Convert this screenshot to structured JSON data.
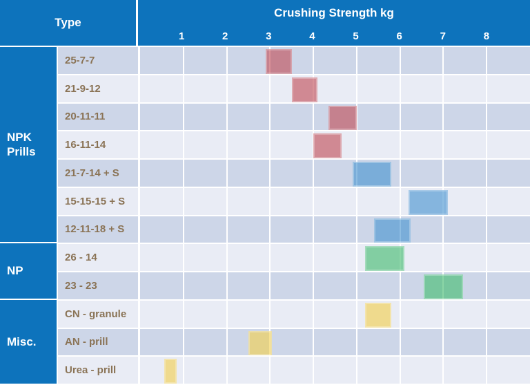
{
  "header": {
    "type_label": "Type",
    "axis_title": "Crushing Strength kg"
  },
  "colors": {
    "header_blue": "#0d73bc",
    "row_dark": "#cdd6e8",
    "row_light": "#e9ecf5",
    "row_label_text": "#8a7355",
    "gridline": "#ffffff",
    "bar_red": "#c04752",
    "bar_blue": "#4291cf",
    "bar_green": "#3eba6b",
    "bar_yellow": "#f4cf48",
    "bar_alpha": 0.6
  },
  "chart_data": {
    "type": "bar",
    "subtype": "horizontal-range-bars",
    "title": "Crushing Strength kg",
    "xlabel": "Crushing Strength kg",
    "ylabel": "Type",
    "xlim": [
      0,
      9
    ],
    "x_ticks": [
      "1",
      "2",
      "3",
      "4",
      "5",
      "6",
      "7",
      "8"
    ],
    "grid": "vertical-white-lines",
    "groups": [
      {
        "label": "NPK Prills",
        "row_count": 7
      },
      {
        "label": "NP",
        "row_count": 2
      },
      {
        "label": "Misc.",
        "row_count": 3
      }
    ],
    "rows": [
      {
        "group": "NPK Prills",
        "label": "25-7-7",
        "range_kg": [
          2.9,
          3.5
        ],
        "color": "bar_red"
      },
      {
        "group": "NPK Prills",
        "label": "21-9-12",
        "range_kg": [
          3.5,
          4.1
        ],
        "color": "bar_red"
      },
      {
        "group": "NPK Prills",
        "label": "20-11-11",
        "range_kg": [
          4.35,
          5.0
        ],
        "color": "bar_red"
      },
      {
        "group": "NPK Prills",
        "label": "16-11-14",
        "range_kg": [
          4.0,
          4.65
        ],
        "color": "bar_red"
      },
      {
        "group": "NPK Prills",
        "label": "21-7-14 + S",
        "range_kg": [
          4.9,
          5.8
        ],
        "color": "bar_blue"
      },
      {
        "group": "NPK Prills",
        "label": "15-15-15 + S",
        "range_kg": [
          6.2,
          7.1
        ],
        "color": "bar_blue"
      },
      {
        "group": "NPK Prills",
        "label": "12-11-18 + S",
        "range_kg": [
          5.4,
          6.25
        ],
        "color": "bar_blue"
      },
      {
        "group": "NP",
        "label": "26 - 14",
        "range_kg": [
          5.2,
          6.1
        ],
        "color": "bar_green"
      },
      {
        "group": "NP",
        "label": "23 - 23",
        "range_kg": [
          6.55,
          7.45
        ],
        "color": "bar_green"
      },
      {
        "group": "Misc.",
        "label": "CN - granule",
        "range_kg": [
          5.2,
          5.8
        ],
        "color": "bar_yellow"
      },
      {
        "group": "Misc.",
        "label": "AN - prill",
        "range_kg": [
          2.5,
          3.05
        ],
        "color": "bar_yellow"
      },
      {
        "group": "Misc.",
        "label": "Urea - prill",
        "range_kg": [
          0.55,
          0.85
        ],
        "color": "bar_yellow"
      }
    ]
  }
}
